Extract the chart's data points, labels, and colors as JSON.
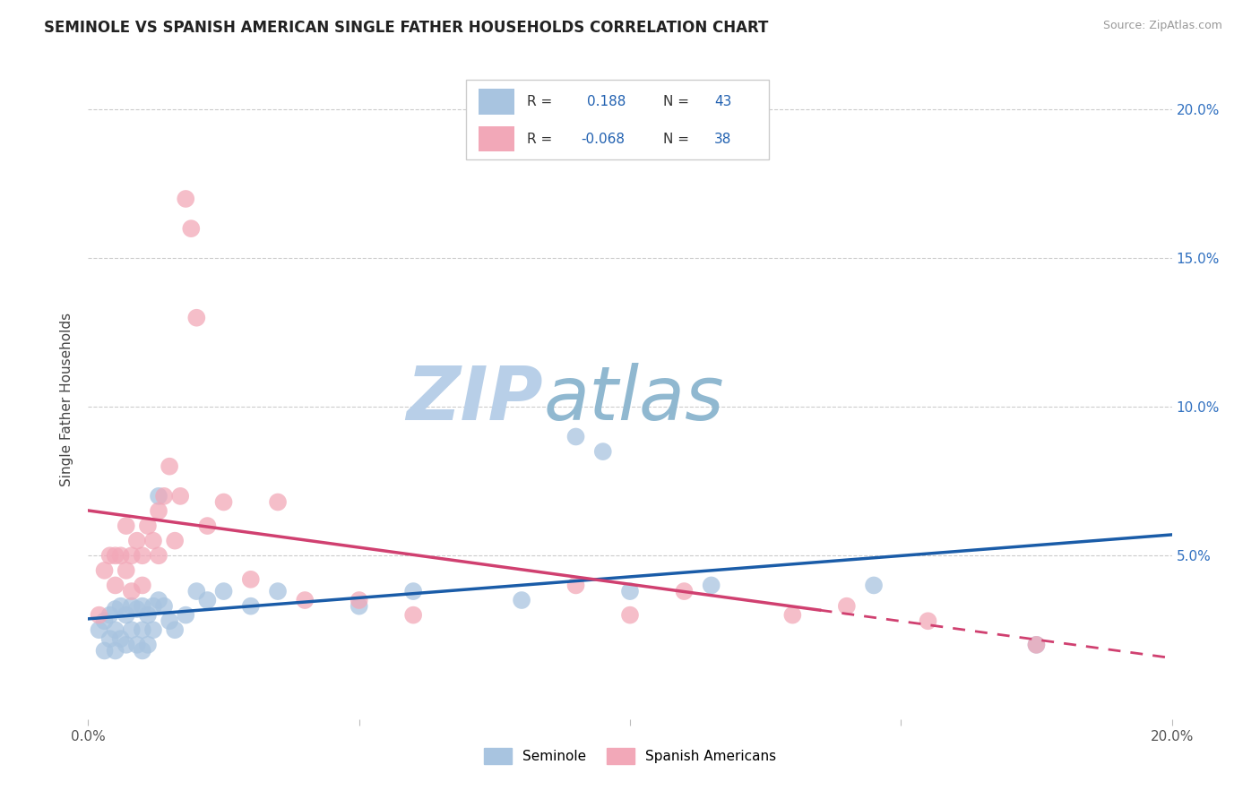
{
  "title": "SEMINOLE VS SPANISH AMERICAN SINGLE FATHER HOUSEHOLDS CORRELATION CHART",
  "source": "Source: ZipAtlas.com",
  "ylabel": "Single Father Households",
  "xlim": [
    0.0,
    0.2
  ],
  "ylim": [
    -0.005,
    0.21
  ],
  "seminole_color": "#a8c4e0",
  "spanish_color": "#f2a8b8",
  "seminole_line_color": "#1a5ca8",
  "spanish_line_color": "#d04070",
  "watermark_zip_color": "#b8cfe8",
  "watermark_atlas_color": "#90b8d0",
  "seminole_x": [
    0.002,
    0.003,
    0.003,
    0.004,
    0.004,
    0.005,
    0.005,
    0.005,
    0.006,
    0.006,
    0.007,
    0.007,
    0.008,
    0.008,
    0.009,
    0.009,
    0.01,
    0.01,
    0.01,
    0.011,
    0.011,
    0.012,
    0.012,
    0.013,
    0.013,
    0.014,
    0.015,
    0.016,
    0.018,
    0.02,
    0.022,
    0.025,
    0.03,
    0.035,
    0.05,
    0.06,
    0.08,
    0.09,
    0.095,
    0.1,
    0.115,
    0.145,
    0.175
  ],
  "seminole_y": [
    0.025,
    0.028,
    0.018,
    0.03,
    0.022,
    0.032,
    0.025,
    0.018,
    0.033,
    0.022,
    0.03,
    0.02,
    0.033,
    0.025,
    0.032,
    0.02,
    0.033,
    0.025,
    0.018,
    0.03,
    0.02,
    0.033,
    0.025,
    0.07,
    0.035,
    0.033,
    0.028,
    0.025,
    0.03,
    0.038,
    0.035,
    0.038,
    0.033,
    0.038,
    0.033,
    0.038,
    0.035,
    0.09,
    0.085,
    0.038,
    0.04,
    0.04,
    0.02
  ],
  "spanish_x": [
    0.002,
    0.003,
    0.004,
    0.005,
    0.005,
    0.006,
    0.007,
    0.007,
    0.008,
    0.008,
    0.009,
    0.01,
    0.01,
    0.011,
    0.012,
    0.013,
    0.013,
    0.014,
    0.015,
    0.016,
    0.017,
    0.018,
    0.019,
    0.02,
    0.022,
    0.025,
    0.03,
    0.035,
    0.04,
    0.05,
    0.06,
    0.09,
    0.1,
    0.11,
    0.13,
    0.14,
    0.155,
    0.175
  ],
  "spanish_y": [
    0.03,
    0.045,
    0.05,
    0.05,
    0.04,
    0.05,
    0.06,
    0.045,
    0.05,
    0.038,
    0.055,
    0.05,
    0.04,
    0.06,
    0.055,
    0.065,
    0.05,
    0.07,
    0.08,
    0.055,
    0.07,
    0.17,
    0.16,
    0.13,
    0.06,
    0.068,
    0.042,
    0.068,
    0.035,
    0.035,
    0.03,
    0.04,
    0.03,
    0.038,
    0.03,
    0.033,
    0.028,
    0.02
  ]
}
